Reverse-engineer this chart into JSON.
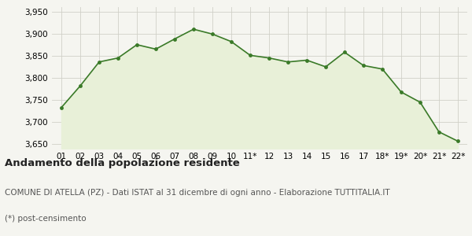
{
  "x_labels": [
    "01",
    "02",
    "03",
    "04",
    "05",
    "06",
    "07",
    "08",
    "09",
    "10",
    "11*",
    "12",
    "13",
    "14",
    "15",
    "16",
    "17",
    "18*",
    "19*",
    "20*",
    "21*",
    "22*"
  ],
  "y_values": [
    3733,
    3782,
    3836,
    3845,
    3875,
    3865,
    3888,
    3910,
    3899,
    3882,
    3851,
    3845,
    3836,
    3840,
    3825,
    3858,
    3828,
    3820,
    3768,
    3745,
    3678,
    3657
  ],
  "line_color": "#3a7a28",
  "fill_color": "#e8f0d8",
  "marker_color": "#3a7a28",
  "bg_color": "#f5f5f0",
  "grid_color": "#d0d0c8",
  "ylim": [
    3640,
    3960
  ],
  "yticks": [
    3650,
    3700,
    3750,
    3800,
    3850,
    3900,
    3950
  ],
  "title_bold": "Andamento della popolazione residente",
  "subtitle": "COMUNE DI ATELLA (PZ) - Dati ISTAT al 31 dicembre di ogni anno - Elaborazione TUTTITALIA.IT",
  "footnote": "(*) post-censimento",
  "title_fontsize": 9.5,
  "subtitle_fontsize": 7.5,
  "footnote_fontsize": 7.5,
  "tick_fontsize": 7.5
}
